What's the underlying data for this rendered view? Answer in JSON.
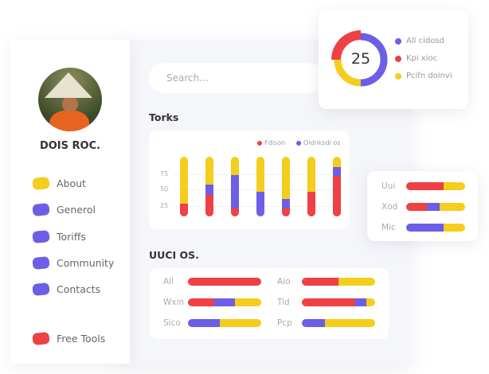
{
  "colors": {
    "red": "#ef4044",
    "blue": "#6c5ee6",
    "yellow": "#f4cd1d"
  },
  "profile": {
    "name": "DOIS ROC."
  },
  "sidebar": {
    "items": [
      {
        "label": "About",
        "color": "yellow"
      },
      {
        "label": "Generol",
        "color": "blue"
      },
      {
        "label": "Toriffs",
        "color": "blue"
      },
      {
        "label": "Community",
        "color": "blue"
      },
      {
        "label": "Contacts",
        "color": "blue"
      },
      {
        "label": "Free Tools",
        "color": "red"
      }
    ]
  },
  "search": {
    "placeholder": "Search..."
  },
  "donut": {
    "value": "25",
    "segments": [
      {
        "label": "All cidosd",
        "color": "blue",
        "percent": 50
      },
      {
        "label": "Kpi xioc",
        "color": "red",
        "percent": 25
      },
      {
        "label": "Pcifn doinvi",
        "color": "yellow",
        "percent": 25
      }
    ]
  },
  "torks": {
    "title": "Torks",
    "legend": [
      {
        "label": "Fdison",
        "color": "red"
      },
      {
        "label": "Oidnksdi os",
        "color": "blue"
      }
    ],
    "ticks": [
      "75",
      "50",
      "25"
    ],
    "bars_percent": [
      {
        "red": 22,
        "blue": 0,
        "yellow": 78
      },
      {
        "red": 36,
        "blue": 18,
        "yellow": 46
      },
      {
        "red": 14,
        "blue": 56,
        "yellow": 30
      },
      {
        "red": 0,
        "blue": 42,
        "yellow": 58
      },
      {
        "red": 14,
        "blue": 16,
        "yellow": 70
      },
      {
        "red": 42,
        "blue": 0,
        "yellow": 58
      },
      {
        "red": 68,
        "blue": 15,
        "yellow": 17
      }
    ]
  },
  "side_panel": {
    "rows": [
      {
        "label": "Uui",
        "red": 64,
        "blue": 0,
        "yellow": 36
      },
      {
        "label": "Xod",
        "red": 35,
        "blue": 22,
        "yellow": 43
      },
      {
        "label": "Mic",
        "red": 0,
        "blue": 64,
        "yellow": 36
      }
    ]
  },
  "uuci": {
    "title": "UUCI OS.",
    "rows": [
      {
        "label": "All",
        "red": 100,
        "blue": 0,
        "yellow": 0
      },
      {
        "label": "Aio",
        "red": 50,
        "blue": 0,
        "yellow": 50
      },
      {
        "label": "Wxin",
        "red": 36,
        "blue": 28,
        "yellow": 36
      },
      {
        "label": "Tid",
        "red": 73,
        "blue": 15,
        "yellow": 12
      },
      {
        "label": "Sico",
        "red": 0,
        "blue": 43,
        "yellow": 57
      },
      {
        "label": "Pcp",
        "red": 0,
        "blue": 31,
        "yellow": 69
      }
    ]
  }
}
